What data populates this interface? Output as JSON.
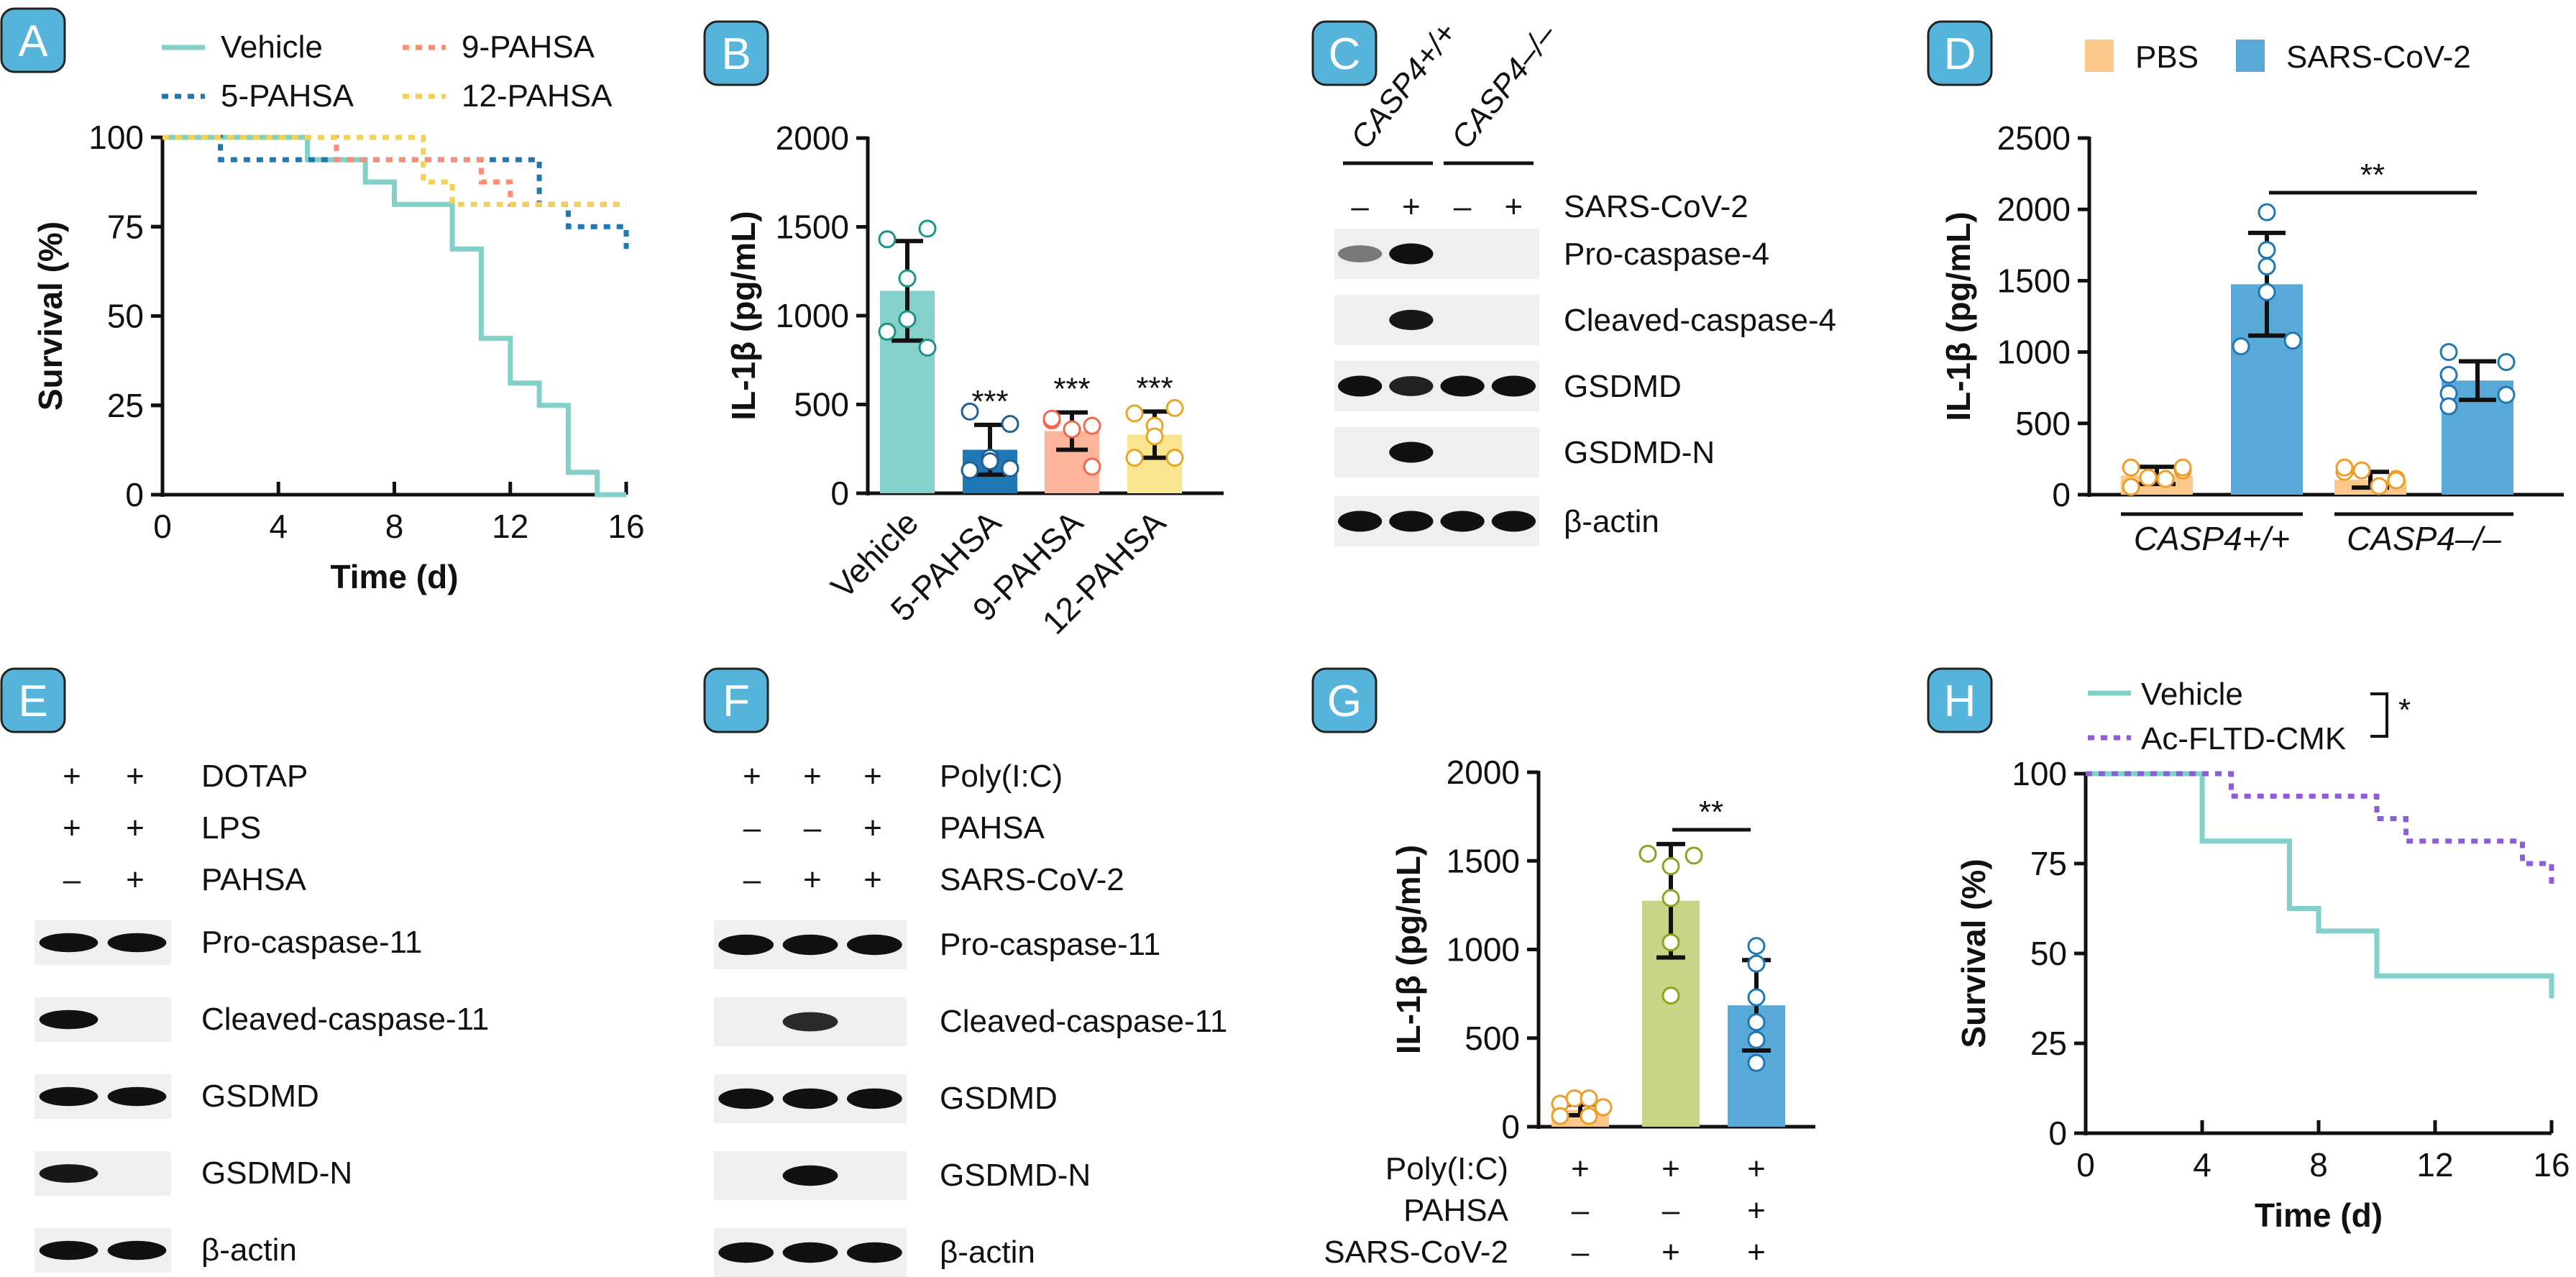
{
  "panel_labels": [
    "A",
    "B",
    "C",
    "D",
    "E",
    "F",
    "G",
    "H"
  ],
  "colors": {
    "panel_label_bg": "#56B4DA",
    "vehicle": "#7FD1C9",
    "pahsa5": "#1F78B4",
    "pahsa9": "#FB8E73",
    "pahsa12": "#F2D059",
    "bar_vehicle": "#84D0CA",
    "bar_pahsa5": "#1F78B4",
    "bar_pahsa9": "#FDB49A",
    "bar_pahsa12": "#F9E58F",
    "pbs": "#FDC98A",
    "sars": "#58A8D8",
    "g_bar2": "#C8D585",
    "ac_fltd": "#8E5CD9"
  },
  "chart_data": [
    {
      "panel": "A",
      "type": "line",
      "step": true,
      "title": "",
      "xlabel": "Time (d)",
      "ylabel": "Survival (%)",
      "xlim": [
        0,
        16
      ],
      "ylim": [
        0,
        100
      ],
      "xticks": [
        0,
        4,
        8,
        12,
        16
      ],
      "yticks": [
        0,
        25,
        50,
        75,
        100
      ],
      "legend": [
        "Vehicle",
        "9-PAHSA",
        "5-PAHSA",
        "12-PAHSA"
      ],
      "series": [
        {
          "name": "Vehicle",
          "style": "solid",
          "color_key": "vehicle",
          "x": [
            0,
            5,
            7,
            8,
            10,
            11,
            12,
            13,
            14,
            15
          ],
          "y": [
            100,
            93.75,
            87.5,
            81.25,
            68.75,
            43.75,
            31.25,
            25,
            6.25,
            0
          ]
        },
        {
          "name": "5-PAHSA",
          "style": "dotted",
          "color_key": "pahsa5",
          "x": [
            0,
            2,
            13,
            14,
            16
          ],
          "y": [
            100,
            93.75,
            81.25,
            75,
            68.75
          ]
        },
        {
          "name": "9-PAHSA",
          "style": "dotted",
          "color_key": "pahsa9",
          "x": [
            0,
            6,
            11,
            12,
            16
          ],
          "y": [
            100,
            93.75,
            87.5,
            81.25,
            81.25
          ]
        },
        {
          "name": "12-PAHSA",
          "style": "dotted",
          "color_key": "pahsa12",
          "x": [
            0,
            9,
            10,
            16
          ],
          "y": [
            100,
            87.5,
            81.25,
            81.25
          ]
        }
      ]
    },
    {
      "panel": "B",
      "type": "bar",
      "ylabel": "IL-1β (pg/mL)",
      "ylim": [
        0,
        2000
      ],
      "yticks": [
        0,
        500,
        1000,
        1500,
        2000
      ],
      "categories": [
        "Vehicle",
        "5-PAHSA",
        "9-PAHSA",
        "12-PAHSA"
      ],
      "values": [
        1140,
        245,
        350,
        330
      ],
      "errors_sd": [
        280,
        140,
        105,
        130
      ],
      "significance": [
        "",
        "***",
        "***",
        "***"
      ],
      "points": [
        [
          1430,
          1490,
          1210,
          980,
          910,
          820
        ],
        [
          460,
          390,
          200,
          180,
          130,
          140
        ],
        [
          410,
          380,
          360,
          360,
          420,
          150
        ],
        [
          450,
          480,
          380,
          320,
          200,
          200
        ]
      ]
    },
    {
      "panel": "C",
      "type": "table",
      "description": "Western blot",
      "column_groups": [
        "CASP4+/+",
        "CASP4–/–"
      ],
      "treatment_row": {
        "label": "SARS-CoV-2",
        "values": [
          "–",
          "+",
          "–",
          "+"
        ]
      },
      "rows": [
        {
          "label": "Pro-caspase-4",
          "bands": [
            0.35,
            1,
            0,
            0
          ]
        },
        {
          "label": "Cleaved-caspase-4",
          "bands": [
            0,
            0.9,
            0,
            0
          ]
        },
        {
          "label": "GSDMD",
          "bands": [
            1,
            0.85,
            1,
            1
          ]
        },
        {
          "label": "GSDMD-N",
          "bands": [
            0,
            1,
            0,
            0
          ]
        },
        {
          "label": "β-actin",
          "bands": [
            1,
            1,
            1,
            1
          ]
        }
      ]
    },
    {
      "panel": "D",
      "type": "bar",
      "ylabel": "IL-1β (pg/mL)",
      "ylim": [
        0,
        2500
      ],
      "yticks": [
        0,
        500,
        1000,
        1500,
        2000,
        2500
      ],
      "categories": [
        "CASP4+/+",
        "CASP4–/–"
      ],
      "legend": [
        "PBS",
        "SARS-CoV-2"
      ],
      "series": [
        {
          "name": "PBS",
          "values": [
            135,
            105
          ],
          "errors_sd": [
            60,
            55
          ],
          "points": [
            [
              190,
              170,
              120,
              110,
              190,
              55
            ],
            [
              160,
              110,
              170,
              60,
              100,
              190
            ]
          ]
        },
        {
          "name": "SARS-CoV-2",
          "values": [
            1475,
            800
          ],
          "errors_sd": [
            360,
            135
          ],
          "points": [
            [
              1980,
              1715,
              1600,
              1420,
              1040,
              1080
            ],
            [
              1000,
              840,
              710,
              620,
              930,
              700
            ]
          ]
        }
      ],
      "significance": {
        "label": "**",
        "between": [
          "CASP4+/+ SARS-CoV-2",
          "CASP4–/– SARS-CoV-2"
        ]
      }
    },
    {
      "panel": "E",
      "type": "table",
      "description": "Western blot",
      "treatments": [
        {
          "label": "DOTAP",
          "values": [
            "+",
            "+"
          ]
        },
        {
          "label": "LPS",
          "values": [
            "+",
            "+"
          ]
        },
        {
          "label": "PAHSA",
          "values": [
            "–",
            "+"
          ]
        }
      ],
      "rows": [
        {
          "label": "Pro-caspase-11",
          "bands": [
            1,
            1
          ]
        },
        {
          "label": "Cleaved-caspase-11",
          "bands": [
            1,
            0
          ]
        },
        {
          "label": "GSDMD",
          "bands": [
            1,
            1
          ]
        },
        {
          "label": "GSDMD-N",
          "bands": [
            0.9,
            0
          ]
        },
        {
          "label": "β-actin",
          "bands": [
            1,
            1
          ]
        }
      ]
    },
    {
      "panel": "F",
      "type": "table",
      "description": "Western blot",
      "treatments": [
        {
          "label": "Poly(I:C)",
          "values": [
            "+",
            "+",
            "+"
          ]
        },
        {
          "label": "PAHSA",
          "values": [
            "–",
            "–",
            "+"
          ]
        },
        {
          "label": "SARS-CoV-2",
          "values": [
            "–",
            "+",
            "+"
          ]
        }
      ],
      "rows": [
        {
          "label": "Pro-caspase-11",
          "bands": [
            1,
            1,
            1
          ]
        },
        {
          "label": "Cleaved-caspase-11",
          "bands": [
            0,
            0.8,
            0
          ]
        },
        {
          "label": "GSDMD",
          "bands": [
            1,
            1,
            1
          ]
        },
        {
          "label": "GSDMD-N",
          "bands": [
            0,
            1,
            0
          ]
        },
        {
          "label": "β-actin",
          "bands": [
            1,
            1,
            1
          ]
        }
      ]
    },
    {
      "panel": "G",
      "type": "bar",
      "ylabel": "IL-1β (pg/mL)",
      "ylim": [
        0,
        2000
      ],
      "yticks": [
        0,
        500,
        1000,
        1500,
        2000
      ],
      "categories": [
        "1",
        "2",
        "3"
      ],
      "treatments": [
        {
          "label": "Poly(I:C)",
          "values": [
            "+",
            "+",
            "+"
          ]
        },
        {
          "label": "PAHSA",
          "values": [
            "–",
            "–",
            "+"
          ]
        },
        {
          "label": "SARS-CoV-2",
          "values": [
            "–",
            "+",
            "+"
          ]
        }
      ],
      "values": [
        95,
        1275,
        685
      ],
      "errors_sd": [
        30,
        320,
        255
      ],
      "points": [
        [
          130,
          160,
          160,
          110,
          60,
          60
        ],
        [
          1540,
          1470,
          1290,
          1040,
          740,
          1530
        ],
        [
          1020,
          920,
          730,
          590,
          490,
          360
        ]
      ],
      "significance": {
        "label": "**",
        "between": [
          "2",
          "3"
        ]
      }
    },
    {
      "panel": "H",
      "type": "line",
      "step": true,
      "xlabel": "Time (d)",
      "ylabel": "Survival (%)",
      "xlim": [
        0,
        16
      ],
      "ylim": [
        0,
        100
      ],
      "xticks": [
        0,
        4,
        8,
        12,
        16
      ],
      "yticks": [
        0,
        25,
        50,
        75,
        100
      ],
      "legend": [
        "Vehicle",
        "Ac-FLTD-CMK"
      ],
      "significance": "*",
      "series": [
        {
          "name": "Vehicle",
          "style": "solid",
          "color_key": "vehicle",
          "x": [
            0,
            4,
            7,
            8,
            10,
            16
          ],
          "y": [
            100,
            81.25,
            62.5,
            56.25,
            43.75,
            37.5
          ]
        },
        {
          "name": "Ac-FLTD-CMK",
          "style": "dotted",
          "color_key": "ac_fltd",
          "x": [
            0,
            5,
            10,
            11,
            15,
            16
          ],
          "y": [
            100,
            93.75,
            87.5,
            81.25,
            75,
            68.75
          ]
        }
      ]
    }
  ]
}
